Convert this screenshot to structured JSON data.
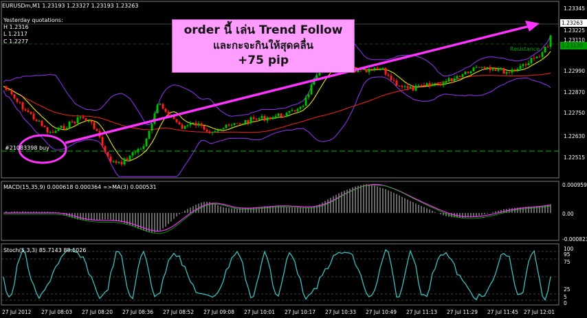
{
  "window": {
    "symbol_label": "EURUSDm,M1  1.23193 1.23327 1.23193 1.23263"
  },
  "yesterday": {
    "title": "Yesterday quotations:",
    "high": "H 1.2316",
    "low": "L 1.2117",
    "close": "C 1.2277"
  },
  "order_label": "#21083398 buy",
  "resistance_label": "Resistance",
  "annotation": {
    "line1": "order นี้ เล่น Trend Follow",
    "line2": "และกะจะกินให้สุดคลื่น",
    "line3": "+75 pip"
  },
  "price_axis": {
    "ticks": [
      "1.23345",
      "1.23225",
      "1.23110",
      "1.22990",
      "1.22870",
      "1.22750",
      "1.22630",
      "1.22515"
    ],
    "current_price": "1.23263",
    "resistance_price": "1.23130"
  },
  "macd": {
    "label": "MACD(15,35,9) 0.000618 0.000364  =>MA(3) 0.000531",
    "ticks": [
      "0.000959",
      "0.00",
      "-0.000823"
    ]
  },
  "stoch": {
    "label": "Stoch(5,3,3) 85.7143 88.5026",
    "ticks": [
      "100",
      "95",
      "75",
      "25",
      "5",
      "0"
    ]
  },
  "time_axis": [
    "27 Jul 2012",
    "27 Jul 08:03",
    "27 Jul 08:20",
    "27 Jul 08:36",
    "27 Jul 08:52",
    "27 Jul 09:08",
    "27 Jul 10:01",
    "27 Jul 10:17",
    "27 Jul 10:33",
    "27 Jul 10:49",
    "27 Jul 11:13",
    "27 Jul 11:29",
    "27 Jul 11:45",
    "27 Jul 12:01"
  ],
  "colors": {
    "bull_candle": "#00c000",
    "bear_candle": "#ff2020",
    "arrow": "#ff33ff",
    "bollinger": "#9933ff",
    "ma_fast": "#ffff00",
    "ma_slow": "#ff2020",
    "order_line": "#00c000",
    "stoch_main": "#40c0c0",
    "macd_signal": "#ff33ff"
  }
}
